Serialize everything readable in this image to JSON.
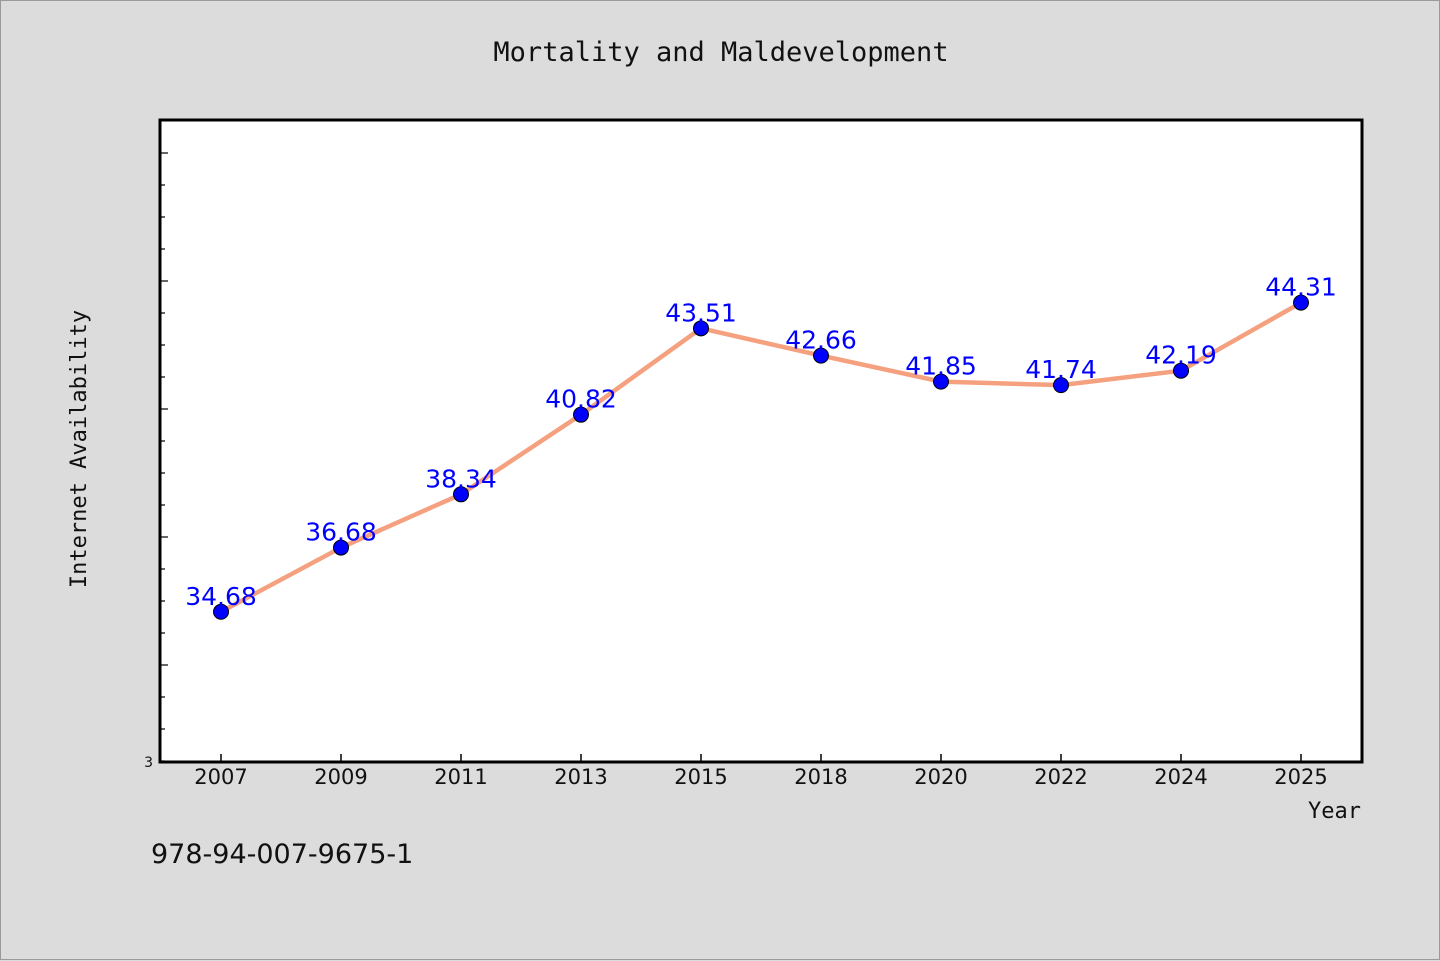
{
  "chart_data": {
    "type": "line",
    "title": "Mortality and Maldevelopment",
    "xlabel": "Year",
    "ylabel": "Internet Availability",
    "categories": [
      "2007",
      "2009",
      "2011",
      "2013",
      "2015",
      "2018",
      "2020",
      "2022",
      "2024",
      "2025"
    ],
    "series": [
      {
        "values": [
          34.68,
          36.68,
          38.34,
          40.82,
          43.51,
          42.66,
          41.85,
          41.74,
          42.19,
          44.31
        ],
        "labels": [
          "34.68",
          "36.68",
          "38.34",
          "40.82",
          "43.51",
          "42.66",
          "41.85",
          "41.74",
          "42.19",
          "44.31"
        ],
        "line_color": "#f5a07e",
        "marker_color": "#0000ff"
      }
    ],
    "yticks": [
      "3"
    ],
    "ylim": [
      30.0,
      50.0
    ],
    "grid": false,
    "legend": "none"
  },
  "footnote": "978-94-007-9675-1"
}
